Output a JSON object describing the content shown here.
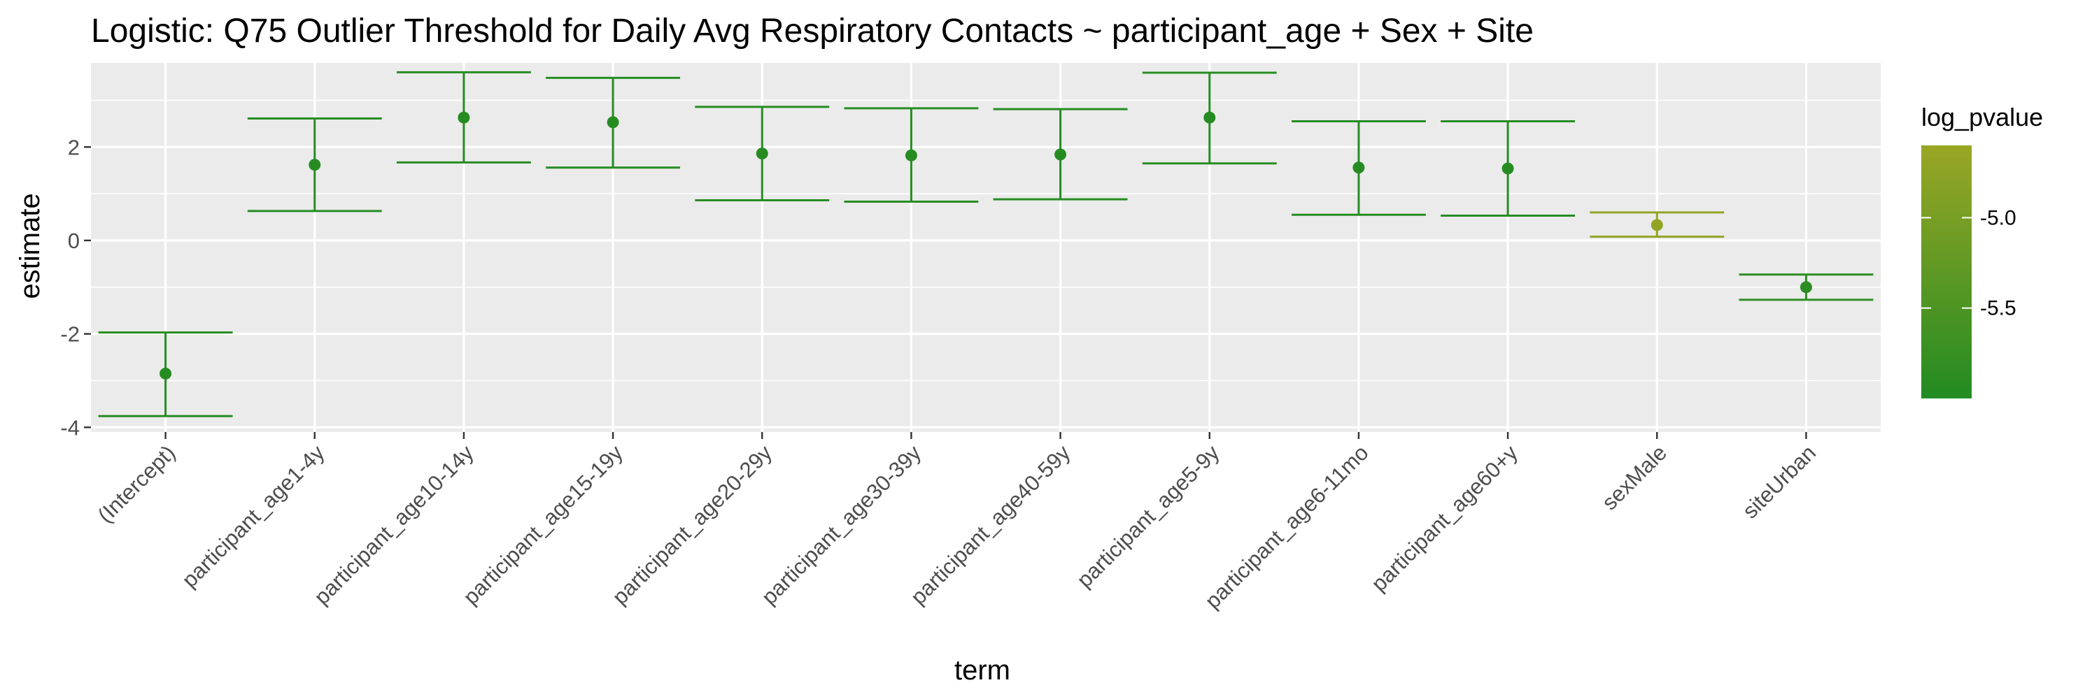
{
  "chart_data": {
    "type": "errorbar",
    "title": "Logistic: Q75 Outlier Threshold for Daily Avg Respiratory Contacts ~ participant_age + Sex + Site",
    "xlabel": "term",
    "ylabel": "estimate",
    "ylim": [
      -4.1,
      3.8
    ],
    "yticks": [
      -4,
      -2,
      0,
      2
    ],
    "ytick_labels": [
      "-4",
      "-2",
      "0",
      "2"
    ],
    "grid": true,
    "legend": {
      "title": "log_pvalue",
      "placement": "right",
      "type": "colorbar",
      "range": [
        -6.0,
        -4.6
      ],
      "ticks": [
        -5.0,
        -5.5
      ],
      "tick_labels": [
        "-5.0",
        "-5.5"
      ],
      "low_color": "#228B22",
      "high_color": "#9AA625"
    },
    "categories": [
      "(Intercept)",
      "participant_age1-4y",
      "participant_age10-14y",
      "participant_age15-19y",
      "participant_age20-29y",
      "participant_age30-39y",
      "participant_age40-59y",
      "participant_age5-9y",
      "participant_age6-11mo",
      "participant_age60+y",
      "sexMale",
      "siteUrban"
    ],
    "estimate": [
      -2.85,
      1.62,
      2.63,
      2.53,
      1.86,
      1.82,
      1.84,
      2.63,
      1.56,
      1.54,
      0.33,
      -1.0
    ],
    "conf_low": [
      -3.76,
      0.63,
      1.67,
      1.56,
      0.86,
      0.83,
      0.88,
      1.65,
      0.55,
      0.53,
      0.08,
      -1.27
    ],
    "conf_high": [
      -1.97,
      2.61,
      3.6,
      3.48,
      2.86,
      2.83,
      2.81,
      3.59,
      2.55,
      2.55,
      0.6,
      -0.73
    ],
    "log_pvalue": [
      -5.95,
      -5.95,
      -5.95,
      -5.95,
      -5.95,
      -5.95,
      -5.95,
      -5.95,
      -5.95,
      -5.95,
      -4.68,
      -5.9
    ]
  }
}
